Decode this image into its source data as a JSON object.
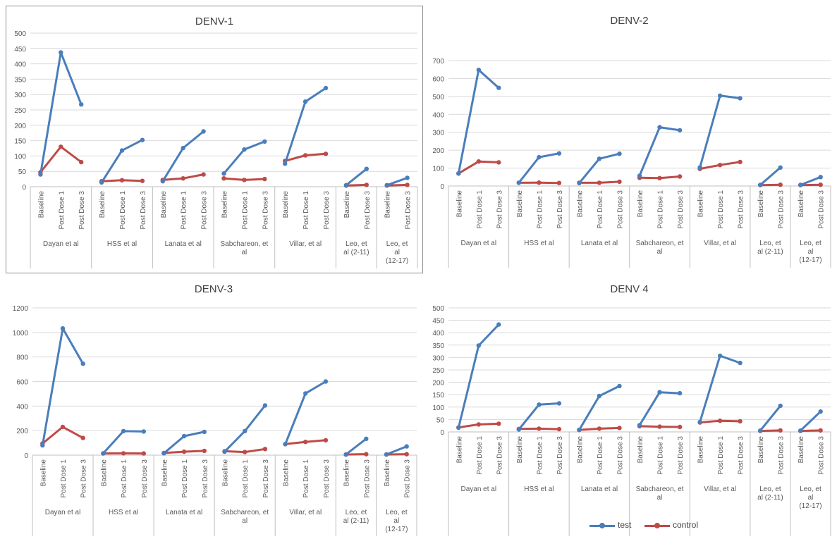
{
  "colors": {
    "test": "#4a7ebb",
    "control": "#be4b48",
    "grid": "#d9d9d9",
    "axis": "#bfbfbf",
    "text": "#595959",
    "title": "#404040"
  },
  "legend": {
    "position": "bottom",
    "items": [
      {
        "key": "test",
        "label": "test"
      },
      {
        "key": "control",
        "label": "control"
      }
    ]
  },
  "chart_data": [
    {
      "type": "line",
      "title": "DENV-1",
      "ylim": [
        0,
        500
      ],
      "ystep": 50,
      "yticks": [
        "0",
        "50",
        "100",
        "150",
        "200",
        "250",
        "300",
        "350",
        "400",
        "450",
        "500"
      ],
      "grid": true,
      "groups": [
        {
          "label": "Dayan et al",
          "categories": [
            "Baseline",
            "Post Dose 1",
            "Post Dose 3"
          ],
          "test": [
            40,
            437,
            268
          ],
          "control": [
            47,
            130,
            80
          ]
        },
        {
          "label": "HSS et al",
          "categories": [
            "Baseline",
            "Post Dose 1",
            "Post Dose 3"
          ],
          "test": [
            14,
            118,
            152
          ],
          "control": [
            18,
            21,
            19
          ]
        },
        {
          "label": "Lanata et al",
          "categories": [
            "Baseline",
            "Post Dose 1",
            "Post Dose 3"
          ],
          "test": [
            18,
            126,
            180
          ],
          "control": [
            22,
            27,
            40
          ]
        },
        {
          "label": "Sabchareon, et al",
          "categories": [
            "Baseline",
            "Post Dose 1",
            "Post Dose 3"
          ],
          "test": [
            43,
            121,
            147
          ],
          "control": [
            27,
            22,
            25
          ]
        },
        {
          "label": "Villar, et al",
          "categories": [
            "Baseline",
            "Post Dose 1",
            "Post Dose 3"
          ],
          "test": [
            75,
            277,
            321
          ],
          "control": [
            84,
            102,
            107
          ]
        },
        {
          "label": "Leo, et al (2-11)",
          "categories": [
            "Baseline",
            "Post Dose 3"
          ],
          "test": [
            5,
            58
          ],
          "control": [
            4,
            6
          ]
        },
        {
          "label": "Leo, et al (12-17)",
          "categories": [
            "Baseline",
            "Post Dose 3"
          ],
          "test": [
            5,
            29
          ],
          "control": [
            4,
            6
          ]
        }
      ]
    },
    {
      "type": "line",
      "title": "DENV-2",
      "ylim": [
        0,
        700
      ],
      "ystep": 100,
      "yticks": [
        "0",
        "100",
        "200",
        "300",
        "400",
        "500",
        "600",
        "700"
      ],
      "grid": true,
      "groups": [
        {
          "label": "Dayan et al",
          "categories": [
            "Baseline",
            "Post Dose 1",
            "Post Dose 3"
          ],
          "test": [
            70,
            648,
            548
          ],
          "control": [
            70,
            137,
            132
          ]
        },
        {
          "label": "HSS et al",
          "categories": [
            "Baseline",
            "Post Dose 1",
            "Post Dose 3"
          ],
          "test": [
            18,
            161,
            182
          ],
          "control": [
            18,
            19,
            17
          ]
        },
        {
          "label": "Lanata et al",
          "categories": [
            "Baseline",
            "Post Dose 1",
            "Post Dose 3"
          ],
          "test": [
            16,
            152,
            180
          ],
          "control": [
            18,
            18,
            24
          ]
        },
        {
          "label": "Sabchareon, et al",
          "categories": [
            "Baseline",
            "Post Dose 1",
            "Post Dose 3"
          ],
          "test": [
            57,
            328,
            311
          ],
          "control": [
            46,
            44,
            53
          ]
        },
        {
          "label": "Villar, et al",
          "categories": [
            "Baseline",
            "Post Dose 1",
            "Post Dose 3"
          ],
          "test": [
            104,
            504,
            490
          ],
          "control": [
            96,
            117,
            134
          ]
        },
        {
          "label": "Leo, et al (2-11)",
          "categories": [
            "Baseline",
            "Post Dose 3"
          ],
          "test": [
            6,
            103
          ],
          "control": [
            5,
            7
          ]
        },
        {
          "label": "Leo, et al (12-17)",
          "categories": [
            "Baseline",
            "Post Dose 3"
          ],
          "test": [
            6,
            50
          ],
          "control": [
            5,
            7
          ]
        }
      ]
    },
    {
      "type": "line",
      "title": "DENV-3",
      "ylim": [
        0,
        1200
      ],
      "ystep": 200,
      "yticks": [
        "0",
        "200",
        "400",
        "600",
        "800",
        "1000",
        "1200"
      ],
      "grid": true,
      "groups": [
        {
          "label": "Dayan et al",
          "categories": [
            "Baseline",
            "Post Dose 1",
            "Post Dose 3"
          ],
          "test": [
            80,
            1033,
            745
          ],
          "control": [
            95,
            230,
            140
          ]
        },
        {
          "label": "HSS et al",
          "categories": [
            "Baseline",
            "Post Dose 1",
            "Post Dose 3"
          ],
          "test": [
            15,
            196,
            193
          ],
          "control": [
            14,
            15,
            14
          ]
        },
        {
          "label": "Lanata et al",
          "categories": [
            "Baseline",
            "Post Dose 1",
            "Post Dose 3"
          ],
          "test": [
            15,
            155,
            190
          ],
          "control": [
            18,
            28,
            35
          ]
        },
        {
          "label": "Sabchareon, et al",
          "categories": [
            "Baseline",
            "Post Dose 1",
            "Post Dose 3"
          ],
          "test": [
            28,
            196,
            405
          ],
          "control": [
            32,
            25,
            50
          ]
        },
        {
          "label": "Villar, et al",
          "categories": [
            "Baseline",
            "Post Dose 1",
            "Post Dose 3"
          ],
          "test": [
            90,
            503,
            600
          ],
          "control": [
            90,
            108,
            122
          ]
        },
        {
          "label": "Leo, et al (2-11)",
          "categories": [
            "Baseline",
            "Post Dose 3"
          ],
          "test": [
            6,
            133
          ],
          "control": [
            5,
            8
          ]
        },
        {
          "label": "Leo, et al (12-17)",
          "categories": [
            "Baseline",
            "Post Dose 3"
          ],
          "test": [
            6,
            71
          ],
          "control": [
            5,
            8
          ]
        }
      ]
    },
    {
      "type": "line",
      "title": "DENV 4",
      "ylim": [
        0,
        500
      ],
      "ystep": 50,
      "yticks": [
        "0",
        "50",
        "100",
        "150",
        "200",
        "250",
        "300",
        "350",
        "400",
        "450",
        "500"
      ],
      "grid": true,
      "groups": [
        {
          "label": "Dayan et al",
          "categories": [
            "Baseline",
            "Post Dose 1",
            "Post Dose 3"
          ],
          "test": [
            17,
            348,
            433
          ],
          "control": [
            18,
            30,
            33
          ]
        },
        {
          "label": "HSS et al",
          "categories": [
            "Baseline",
            "Post Dose 1",
            "Post Dose 3"
          ],
          "test": [
            10,
            110,
            115
          ],
          "control": [
            12,
            13,
            11
          ]
        },
        {
          "label": "Lanata et al",
          "categories": [
            "Baseline",
            "Post Dose 1",
            "Post Dose 3"
          ],
          "test": [
            8,
            145,
            185
          ],
          "control": [
            8,
            13,
            16
          ]
        },
        {
          "label": "Sabchareon, et al",
          "categories": [
            "Baseline",
            "Post Dose 1",
            "Post Dose 3"
          ],
          "test": [
            27,
            160,
            156
          ],
          "control": [
            23,
            21,
            20
          ]
        },
        {
          "label": "Villar, et al",
          "categories": [
            "Baseline",
            "Post Dose 1",
            "Post Dose 3"
          ],
          "test": [
            40,
            307,
            278
          ],
          "control": [
            38,
            45,
            43
          ]
        },
        {
          "label": "Leo, et al (2-11)",
          "categories": [
            "Baseline",
            "Post Dose 3"
          ],
          "test": [
            5,
            105
          ],
          "control": [
            4,
            6
          ]
        },
        {
          "label": "Leo, et al (12-17)",
          "categories": [
            "Baseline",
            "Post Dose 3"
          ],
          "test": [
            5,
            82
          ],
          "control": [
            4,
            6
          ]
        }
      ]
    }
  ]
}
